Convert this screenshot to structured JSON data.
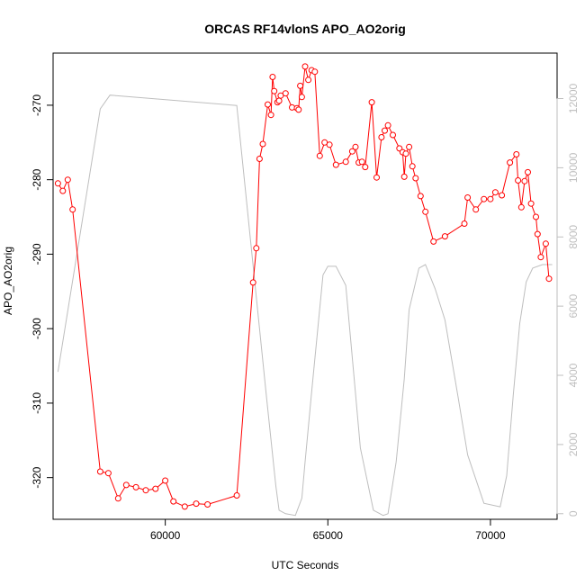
{
  "chart_data": {
    "type": "line",
    "title": "ORCAS RF14vlonS APO_AO2orig",
    "xlabel": "UTC Seconds",
    "ylabel": "APO_AO2orig",
    "xlim": [
      56550,
      72050
    ],
    "ylim": [
      -325.6,
      -263.0
    ],
    "y2lim": [
      -162,
      13314
    ],
    "x_ticks": [
      60000,
      65000,
      70000
    ],
    "y_ticks": [
      -320,
      -310,
      -300,
      -290,
      -280,
      -270
    ],
    "y2_ticks": [
      0,
      2000,
      4000,
      6000,
      8000,
      10000,
      12000
    ],
    "grid": false,
    "colors": {
      "primary": "#ff0000",
      "secondary": "#bebebe",
      "frame": "#000000"
    },
    "series": [
      {
        "axis": "left",
        "style": "line+points",
        "color": "#ff0000",
        "x": [
          56700,
          56850,
          57000,
          57150,
          58000,
          58250,
          58550,
          58800,
          59100,
          59400,
          59700,
          60000,
          60250,
          60600,
          60950,
          61300,
          62200,
          62700,
          62800,
          62900,
          63000,
          63150,
          63250,
          63300,
          63350,
          63450,
          63500,
          63550,
          63700,
          63900,
          64050,
          64100,
          64150,
          64200,
          64300,
          64400,
          64500,
          64600,
          64750,
          64900,
          65050,
          65250,
          65550,
          65750,
          65850,
          65950,
          66050,
          66150,
          66350,
          66500,
          66650,
          66750,
          66850,
          67000,
          67200,
          67300,
          67350,
          67400,
          67500,
          67600,
          67700,
          67850,
          68000,
          68250,
          68600,
          69200,
          69300,
          69550,
          69800,
          70000,
          70150,
          70350,
          70600,
          70800,
          70850,
          70950,
          71050,
          71150,
          71250,
          71400,
          71450,
          71550,
          71700,
          71800
        ],
        "y": [
          -280.5,
          -281.5,
          -280.0,
          -284.0,
          -319.2,
          -319.4,
          -322.8,
          -321.0,
          -321.3,
          -321.7,
          -321.5,
          -320.4,
          -323.2,
          -323.9,
          -323.5,
          -323.6,
          -322.4,
          -293.8,
          -289.2,
          -277.2,
          -275.2,
          -269.9,
          -271.3,
          -266.2,
          -268.1,
          -269.6,
          -269.4,
          -268.7,
          -268.4,
          -270.3,
          -270.4,
          -270.6,
          -267.4,
          -268.9,
          -264.8,
          -266.6,
          -265.3,
          -265.5,
          -276.8,
          -275.0,
          -275.3,
          -278.0,
          -277.6,
          -276.2,
          -275.6,
          -277.7,
          -277.6,
          -278.3,
          -269.6,
          -279.7,
          -274.3,
          -273.4,
          -272.7,
          -274.0,
          -275.8,
          -276.3,
          -279.6,
          -276.5,
          -275.6,
          -278.2,
          -279.8,
          -282.2,
          -284.3,
          -288.3,
          -287.6,
          -285.9,
          -282.4,
          -284.0,
          -282.6,
          -282.6,
          -281.7,
          -282.1,
          -277.7,
          -276.6,
          -280.1,
          -283.7,
          -280.2,
          -279.0,
          -283.2,
          -285.0,
          -287.3,
          -290.4,
          -288.6,
          -293.3
        ]
      },
      {
        "axis": "right",
        "style": "line",
        "color": "#bebebe",
        "x": [
          56700,
          58000,
          58300,
          62200,
          63100,
          63400,
          63500,
          63700,
          64000,
          64200,
          64300,
          64500,
          64850,
          65000,
          65250,
          65550,
          65800,
          66000,
          66400,
          66700,
          66850,
          67100,
          67350,
          67500,
          67800,
          68000,
          68300,
          68600,
          69000,
          69300,
          69800,
          70300,
          70500,
          70700,
          70900,
          71100,
          71300,
          71600,
          71900
        ],
        "y": [
          4100,
          11700,
          12100,
          11800,
          3500,
          800,
          100,
          0,
          -50,
          450,
          1500,
          3500,
          6900,
          7150,
          7150,
          6600,
          4000,
          1900,
          100,
          -50,
          0,
          1500,
          3900,
          5900,
          7100,
          7200,
          6500,
          5600,
          3400,
          1700,
          300,
          200,
          1100,
          3400,
          5500,
          6700,
          7100,
          7200,
          7200
        ]
      }
    ]
  }
}
